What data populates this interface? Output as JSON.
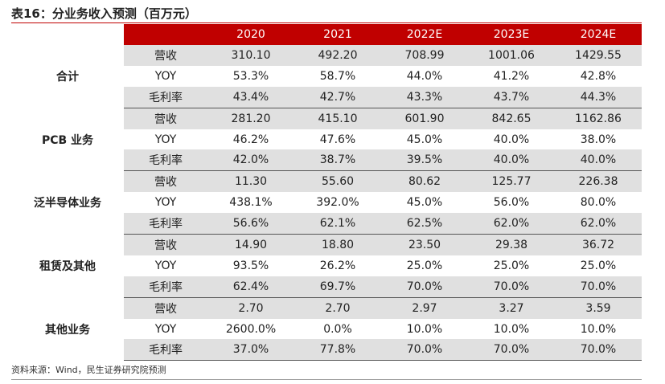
{
  "title": "表16：分业务收入预测（百万元）",
  "years": [
    "2020",
    "2021",
    "2022E",
    "2023E",
    "2024E"
  ],
  "groups": [
    {
      "name": "合计",
      "rows": [
        {
          "label": "营收",
          "values": [
            "310.10",
            "492.20",
            "708.99",
            "1001.06",
            "1429.55"
          ]
        },
        {
          "label": "YOY",
          "values": [
            "53.3%",
            "58.7%",
            "44.0%",
            "41.2%",
            "42.8%"
          ]
        },
        {
          "label": "毛利率",
          "values": [
            "43.4%",
            "42.7%",
            "43.3%",
            "43.7%",
            "44.3%"
          ]
        }
      ]
    },
    {
      "name": "PCB 业务",
      "rows": [
        {
          "label": "营收",
          "values": [
            "281.20",
            "415.10",
            "601.90",
            "842.65",
            "1162.86"
          ]
        },
        {
          "label": "YOY",
          "values": [
            "46.2%",
            "47.6%",
            "45.0%",
            "40.0%",
            "38.0%"
          ]
        },
        {
          "label": "毛利率",
          "values": [
            "42.0%",
            "38.7%",
            "39.5%",
            "40.0%",
            "40.0%"
          ]
        }
      ]
    },
    {
      "name": "泛半导体业务",
      "rows": [
        {
          "label": "营收",
          "values": [
            "11.30",
            "55.60",
            "80.62",
            "125.77",
            "226.38"
          ]
        },
        {
          "label": "YOY",
          "values": [
            "438.1%",
            "392.0%",
            "45.0%",
            "56.0%",
            "80.0%"
          ]
        },
        {
          "label": "毛利率",
          "values": [
            "56.6%",
            "62.1%",
            "62.5%",
            "62.0%",
            "62.0%"
          ]
        }
      ]
    },
    {
      "name": "租赁及其他",
      "rows": [
        {
          "label": "营收",
          "values": [
            "14.90",
            "18.80",
            "23.50",
            "29.38",
            "36.72"
          ]
        },
        {
          "label": "YOY",
          "values": [
            "93.5%",
            "26.2%",
            "25.0%",
            "25.0%",
            "25.0%"
          ]
        },
        {
          "label": "毛利率",
          "values": [
            "62.4%",
            "69.7%",
            "70.0%",
            "70.0%",
            "70.0%"
          ]
        }
      ]
    },
    {
      "name": "其他业务",
      "rows": [
        {
          "label": "营收",
          "values": [
            "2.70",
            "2.70",
            "2.97",
            "3.27",
            "3.59"
          ]
        },
        {
          "label": "YOY",
          "values": [
            "2600.0%",
            "0.0%",
            "10.0%",
            "10.0%",
            "10.0%"
          ]
        },
        {
          "label": "毛利率",
          "values": [
            "37.0%",
            "77.8%",
            "70.0%",
            "70.0%",
            "70.0%"
          ]
        }
      ]
    }
  ],
  "source": "资料来源：Wind，民生证券研究院预测",
  "colors": {
    "header_bg": "#c00000",
    "row_shade": "#e0e0e0"
  }
}
